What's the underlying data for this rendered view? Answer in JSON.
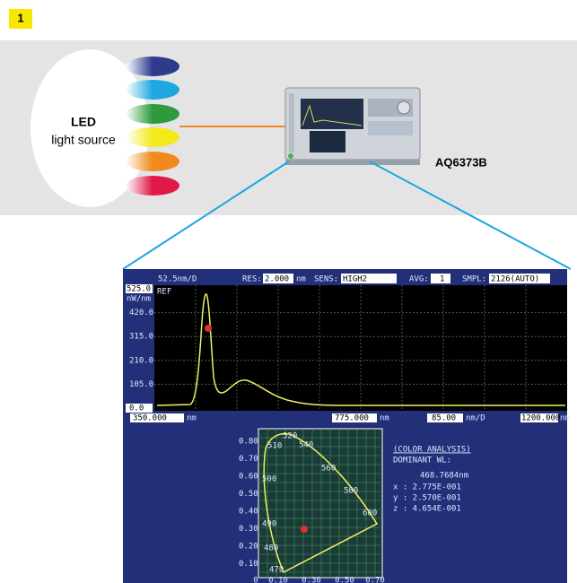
{
  "step": "1",
  "source": {
    "title": "LED",
    "subtitle": "light source"
  },
  "instrument": {
    "model": "AQ6373B"
  },
  "screen": {
    "header": {
      "scale": "52.5nm/D",
      "res_label": "RES:",
      "res_value": "2.000",
      "res_unit": "nm",
      "sens_label": "SENS:",
      "sens_value": "HIGH2",
      "avg_label": "AVG:",
      "avg_value": "1",
      "smpl_label": "SMPL:",
      "smpl_value": "2126(AUTO)"
    },
    "y_axis": {
      "top": "525.0",
      "unit": "nW/nm",
      "ref": "REF",
      "ticks": [
        "420.0",
        "315.0",
        "210.0",
        "105.0",
        "0.0"
      ]
    },
    "footer": {
      "start": "350.000",
      "start_unit": "nm",
      "center": "775.000",
      "center_unit": "nm",
      "span": "85.00",
      "span_unit": "nm/D",
      "stop": "1200.000",
      "stop_unit": "nm"
    },
    "cie": {
      "y_ticks": [
        "0.80",
        "0.70",
        "0.60",
        "0.50",
        "0.40",
        "0.30",
        "0.20",
        "0.10"
      ],
      "x_ticks": [
        "0",
        "0.10",
        "0.30",
        "0.50",
        "0.70"
      ],
      "wavelengths": [
        "520",
        "510",
        "540",
        "560",
        "580",
        "500",
        "600",
        "490",
        "480",
        "470"
      ]
    },
    "analysis": {
      "title": "(COLOR ANALYSIS)",
      "label": "DOMINANT WL:",
      "value": "468.7684nm",
      "x": "x : 2.775E-001",
      "y": "y : 2.570E-001",
      "z": "z : 4.654E-001"
    }
  }
}
